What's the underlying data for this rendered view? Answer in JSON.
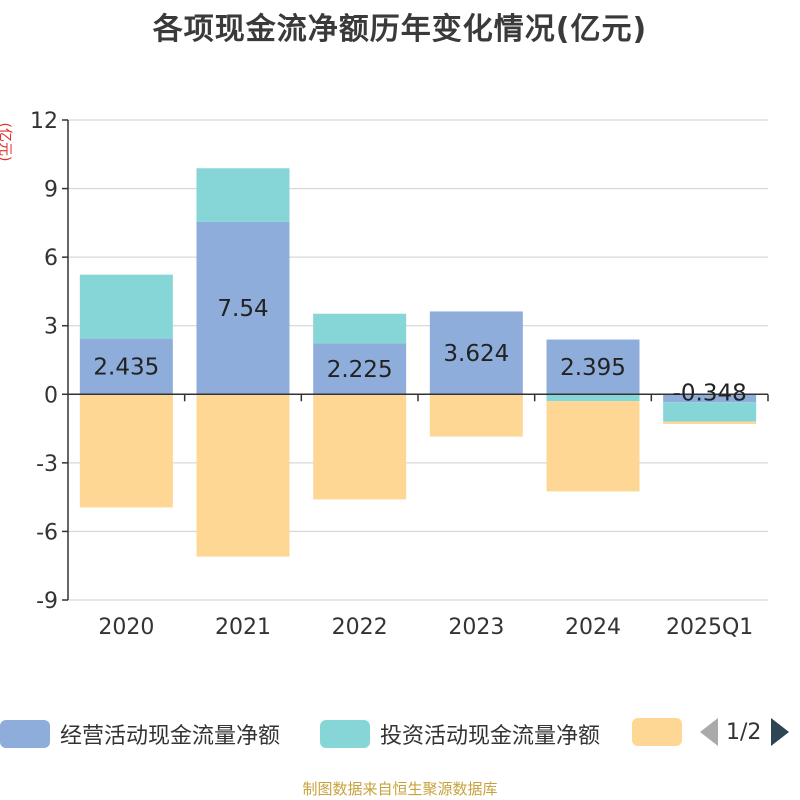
{
  "page": {
    "title": "各项现金流净额历年变化情况(亿元)",
    "unit_label": "(亿元)",
    "footer": "制图数据来自恒生聚源数据库",
    "pager": {
      "text": "1/2"
    }
  },
  "chart_data": {
    "type": "bar",
    "stacked": true,
    "title": "各项现金流净额历年变化情况(亿元)",
    "ylabel": "(亿元)",
    "categories": [
      "2020",
      "2021",
      "2022",
      "2023",
      "2024",
      "2025Q1"
    ],
    "ylim": [
      -9,
      12
    ],
    "yticks": [
      12,
      9,
      6,
      3,
      0,
      -3,
      -6,
      -9
    ],
    "grid": true,
    "legend_position": "bottom",
    "series": [
      {
        "name": "经营活动现金流量净额",
        "color": "#8eaddb",
        "values": [
          2.435,
          7.54,
          2.225,
          3.624,
          2.395,
          -0.348
        ]
      },
      {
        "name": "投资活动现金流量净额",
        "color": "#86d6d8",
        "values": [
          2.8,
          2.35,
          1.3,
          0.0,
          -0.3,
          -0.85
        ]
      },
      {
        "name": "",
        "color": "#fed794",
        "values": [
          -4.95,
          -7.1,
          -4.6,
          -1.85,
          -3.95,
          -0.1
        ]
      }
    ],
    "data_labels": [
      "2.435",
      "7.54",
      "2.225",
      "3.624",
      "2.395",
      "-0.348"
    ]
  }
}
